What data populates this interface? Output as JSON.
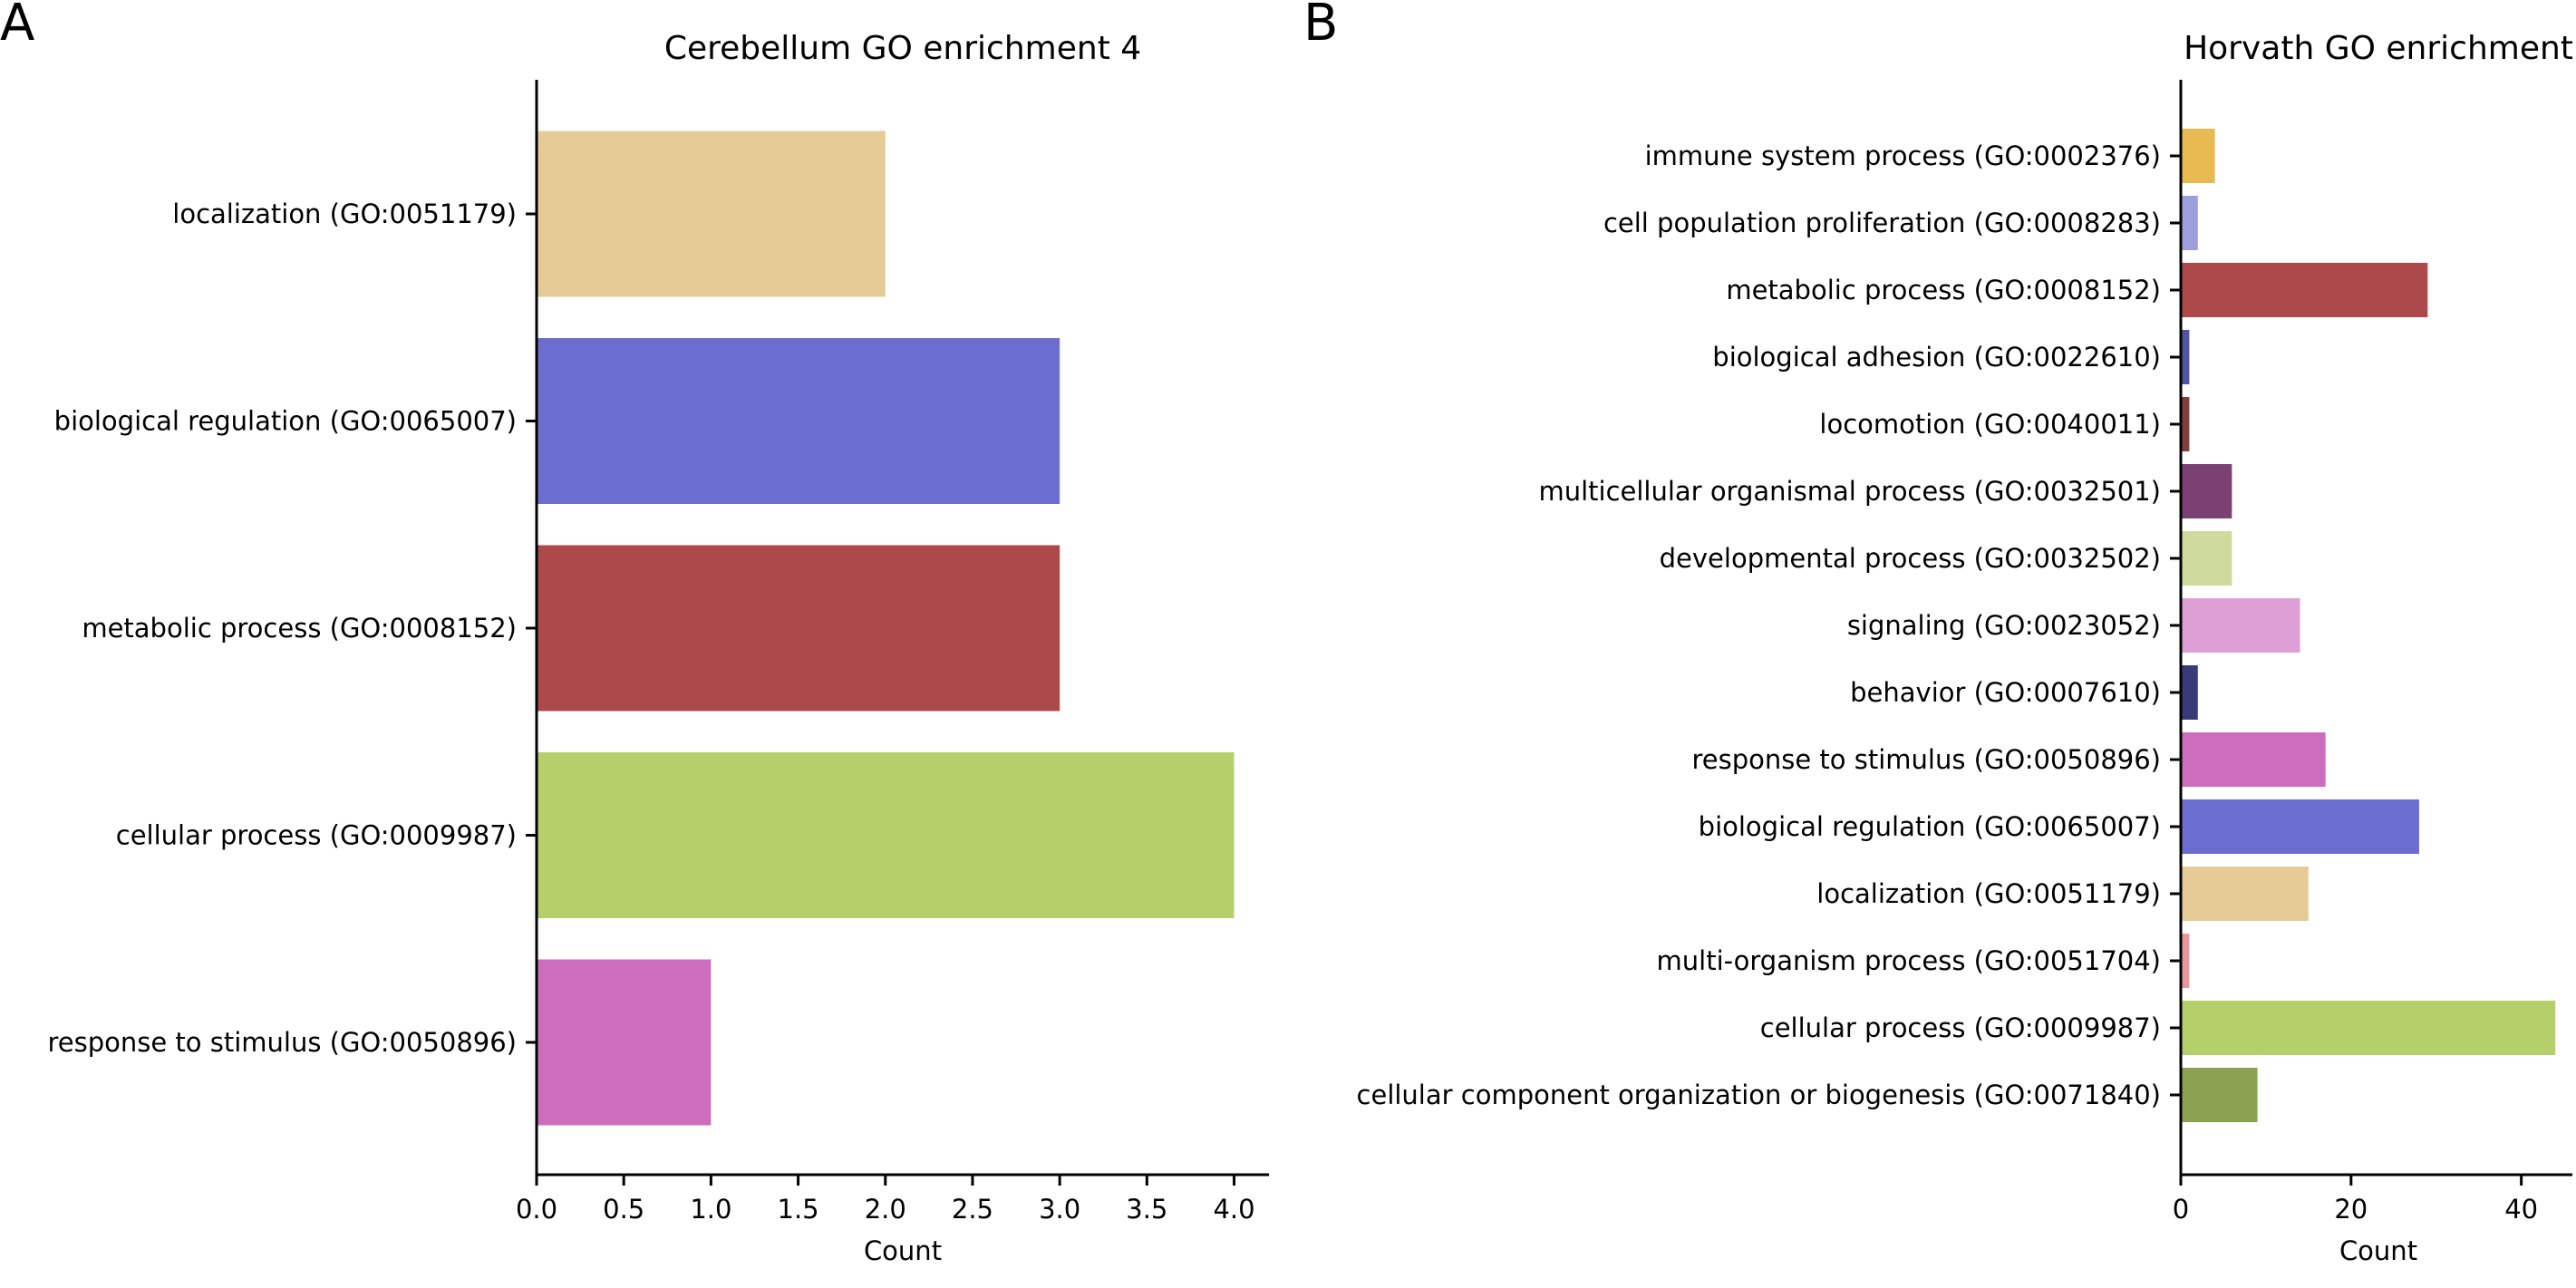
{
  "panel_labels": [
    "A",
    "B"
  ],
  "chart_data": [
    {
      "type": "bar",
      "orientation": "horizontal",
      "title": "Cerebellum GO enrichment 4",
      "xlabel": "Count",
      "ylabel": "",
      "xlim": [
        0,
        4.2
      ],
      "xticks": [
        "0.0",
        "0.5",
        "1.0",
        "1.5",
        "2.0",
        "2.5",
        "3.0",
        "3.5",
        "4.0"
      ],
      "grid": false,
      "categories": [
        "localization (GO:0051179)",
        "biological regulation (GO:0065007)",
        "metabolic process (GO:0008152)",
        "cellular process (GO:0009987)",
        "response to stimulus (GO:0050896)"
      ],
      "values": [
        2,
        3,
        3,
        4,
        1
      ],
      "colors": [
        "#e6cb97",
        "#6b6ecf",
        "#ad494a",
        "#b5cf6b",
        "#ce6dbd"
      ]
    },
    {
      "type": "bar",
      "orientation": "horizontal",
      "title": "Horvath GO enrichment",
      "xlabel": "Count",
      "ylabel": "",
      "xlim": [
        0,
        46
      ],
      "xticks": [
        "0",
        "20",
        "40"
      ],
      "grid": false,
      "categories": [
        "immune system process (GO:0002376)",
        "cell population proliferation (GO:0008283)",
        "metabolic process (GO:0008152)",
        "biological adhesion (GO:0022610)",
        "locomotion (GO:0040011)",
        "multicellular organismal process (GO:0032501)",
        "developmental process (GO:0032502)",
        "signaling (GO:0023052)",
        "behavior (GO:0007610)",
        "response to stimulus (GO:0050896)",
        "biological regulation (GO:0065007)",
        "localization (GO:0051179)",
        "multi-organism process (GO:0051704)",
        "cellular process (GO:0009987)",
        "cellular component organization or biogenesis (GO:0071840)"
      ],
      "values": [
        4,
        2,
        29,
        1,
        1,
        6,
        6,
        14,
        2,
        17,
        28,
        15,
        1,
        44,
        9
      ],
      "colors": [
        "#e7ba52",
        "#9c9ede",
        "#ad494a",
        "#5254a3",
        "#843c39",
        "#7b4173",
        "#cedb9c",
        "#de9ed6",
        "#393b79",
        "#ce6dbd",
        "#6b6ecf",
        "#e6cb97",
        "#e7969c",
        "#b5cf6b",
        "#8ca252"
      ]
    }
  ]
}
